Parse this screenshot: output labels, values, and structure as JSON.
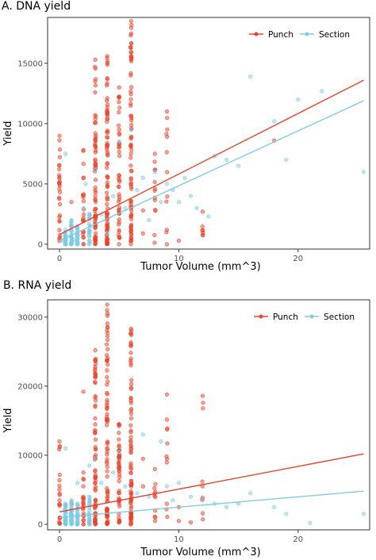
{
  "chart_data": [
    {
      "type": "scatter",
      "title": "A. DNA yield",
      "xlabel": "Tumor Volume (mm^3)",
      "ylabel": "Yield",
      "xlim": [
        -1,
        26
      ],
      "ylim": [
        -400,
        18800
      ],
      "xticks": [
        0,
        10,
        20
      ],
      "yticks": [
        0,
        5000,
        10000,
        15000
      ],
      "grid": false,
      "legend": "top-right",
      "series": [
        {
          "name": "Punch",
          "color": "#e8432a",
          "trend": [
            [
              0,
              800
            ],
            [
              25.5,
              13600
            ]
          ],
          "stacks": [
            {
              "x": 0,
              "ymin": 0,
              "ymax": 9000,
              "n": 28
            },
            {
              "x": 2,
              "ymin": 0,
              "ymax": 7800,
              "n": 22
            },
            {
              "x": 3,
              "ymin": 0,
              "ymax": 15300,
              "n": 70
            },
            {
              "x": 4,
              "ymin": 0,
              "ymax": 15600,
              "n": 85
            },
            {
              "x": 5,
              "ymin": 0,
              "ymax": 13000,
              "n": 45
            },
            {
              "x": 6,
              "ymin": 0,
              "ymax": 18500,
              "n": 80
            },
            {
              "x": 8,
              "ymin": 0,
              "ymax": 7500,
              "n": 12
            },
            {
              "x": 9,
              "ymin": 0,
              "ymax": 11000,
              "n": 10
            },
            {
              "x": 12,
              "ymin": 700,
              "ymax": 2700,
              "n": 6
            }
          ],
          "points": [
            [
              1,
              1500
            ],
            [
              1,
              3500
            ],
            [
              7,
              2800
            ],
            [
              7,
              900
            ],
            [
              9,
              1200
            ],
            [
              18,
              8600
            ],
            [
              10,
              300
            ]
          ]
        },
        {
          "name": "Section",
          "color": "#7ecbe3",
          "trend": [
            [
              0,
              300
            ],
            [
              25.5,
              11900
            ]
          ],
          "stacks": [
            {
              "x": 0.5,
              "ymin": 0,
              "ymax": 1200,
              "n": 30
            },
            {
              "x": 1,
              "ymin": 0,
              "ymax": 2000,
              "n": 30
            },
            {
              "x": 1.5,
              "ymin": 0,
              "ymax": 1500,
              "n": 25
            },
            {
              "x": 2.5,
              "ymin": 0,
              "ymax": 2500,
              "n": 20
            }
          ],
          "points": [
            [
              0.2,
              300
            ],
            [
              0.5,
              7500
            ],
            [
              1.2,
              400
            ],
            [
              2,
              3000
            ],
            [
              3.5,
              2500
            ],
            [
              4.5,
              4000
            ],
            [
              5.5,
              3000
            ],
            [
              6.5,
              4500
            ],
            [
              7,
              5500
            ],
            [
              7.5,
              2000
            ],
            [
              8,
              6000
            ],
            [
              8.5,
              3500
            ],
            [
              9,
              5000
            ],
            [
              9.5,
              4500
            ],
            [
              10,
              3500
            ],
            [
              10.5,
              5500
            ],
            [
              11,
              4000
            ],
            [
              11.5,
              3000
            ],
            [
              12.5,
              2300
            ],
            [
              13,
              7300
            ],
            [
              14,
              7000
            ],
            [
              15,
              6500
            ],
            [
              16,
              13900
            ],
            [
              18,
              10200
            ],
            [
              19,
              7000
            ],
            [
              20,
              12000
            ],
            [
              22,
              12700
            ],
            [
              25.5,
              6000
            ],
            [
              3,
              6200
            ],
            [
              5,
              8500
            ],
            [
              4,
              900
            ],
            [
              2.2,
              5000
            ],
            [
              6,
              9500
            ]
          ]
        }
      ]
    },
    {
      "type": "scatter",
      "title": "B. RNA yield",
      "xlabel": "Tumor Volume (mm^3)",
      "ylabel": "Yield",
      "xlim": [
        -1,
        26
      ],
      "ylim": [
        -800,
        32500
      ],
      "xticks": [
        0,
        10,
        20
      ],
      "yticks": [
        0,
        10000,
        20000,
        30000
      ],
      "grid": false,
      "legend": "top-right",
      "series": [
        {
          "name": "Punch",
          "color": "#e8432a",
          "trend": [
            [
              0,
              1800
            ],
            [
              25.5,
              10200
            ]
          ],
          "stacks": [
            {
              "x": 0,
              "ymin": 0,
              "ymax": 12000,
              "n": 20
            },
            {
              "x": 2,
              "ymin": 0,
              "ymax": 7500,
              "n": 20
            },
            {
              "x": 3,
              "ymin": 0,
              "ymax": 25200,
              "n": 75
            },
            {
              "x": 4,
              "ymin": 0,
              "ymax": 31800,
              "n": 85
            },
            {
              "x": 5,
              "ymin": 0,
              "ymax": 14500,
              "n": 45
            },
            {
              "x": 6,
              "ymin": 0,
              "ymax": 28300,
              "n": 80
            },
            {
              "x": 8,
              "ymin": 0,
              "ymax": 8000,
              "n": 10
            },
            {
              "x": 9,
              "ymin": 0,
              "ymax": 18800,
              "n": 10
            },
            {
              "x": 12,
              "ymin": 500,
              "ymax": 18600,
              "n": 8
            }
          ],
          "points": [
            [
              2,
              19200
            ],
            [
              1,
              3000
            ],
            [
              7,
              5500
            ],
            [
              10,
              500
            ],
            [
              10,
              2500
            ],
            [
              7,
              9500
            ],
            [
              11,
              300
            ]
          ]
        },
        {
          "name": "Section",
          "color": "#7ecbe3",
          "trend": [
            [
              0,
              1000
            ],
            [
              25.5,
              4800
            ]
          ],
          "stacks": [
            {
              "x": 0.5,
              "ymin": 0,
              "ymax": 3000,
              "n": 35
            },
            {
              "x": 1,
              "ymin": 0,
              "ymax": 3500,
              "n": 35
            },
            {
              "x": 1.5,
              "ymin": 0,
              "ymax": 3000,
              "n": 30
            },
            {
              "x": 2.5,
              "ymin": 0,
              "ymax": 4000,
              "n": 25
            }
          ],
          "points": [
            [
              0.5,
              11000
            ],
            [
              1.5,
              6000
            ],
            [
              2.5,
              8500
            ],
            [
              3.5,
              6000
            ],
            [
              4.5,
              7500
            ],
            [
              5.5,
              5500
            ],
            [
              6.5,
              4500
            ],
            [
              7.5,
              4000
            ],
            [
              8.5,
              12000
            ],
            [
              9,
              5500
            ],
            [
              9.5,
              3500
            ],
            [
              10,
              6000
            ],
            [
              11,
              4000
            ],
            [
              12,
              3500
            ],
            [
              13,
              3000
            ],
            [
              14,
              2500
            ],
            [
              15,
              3000
            ],
            [
              16,
              4500
            ],
            [
              18,
              2500
            ],
            [
              19,
              1500
            ],
            [
              21,
              200
            ],
            [
              25.5,
              1500
            ],
            [
              7,
              13000
            ],
            [
              3,
              9500
            ],
            [
              5,
              10500
            ]
          ]
        }
      ]
    }
  ]
}
